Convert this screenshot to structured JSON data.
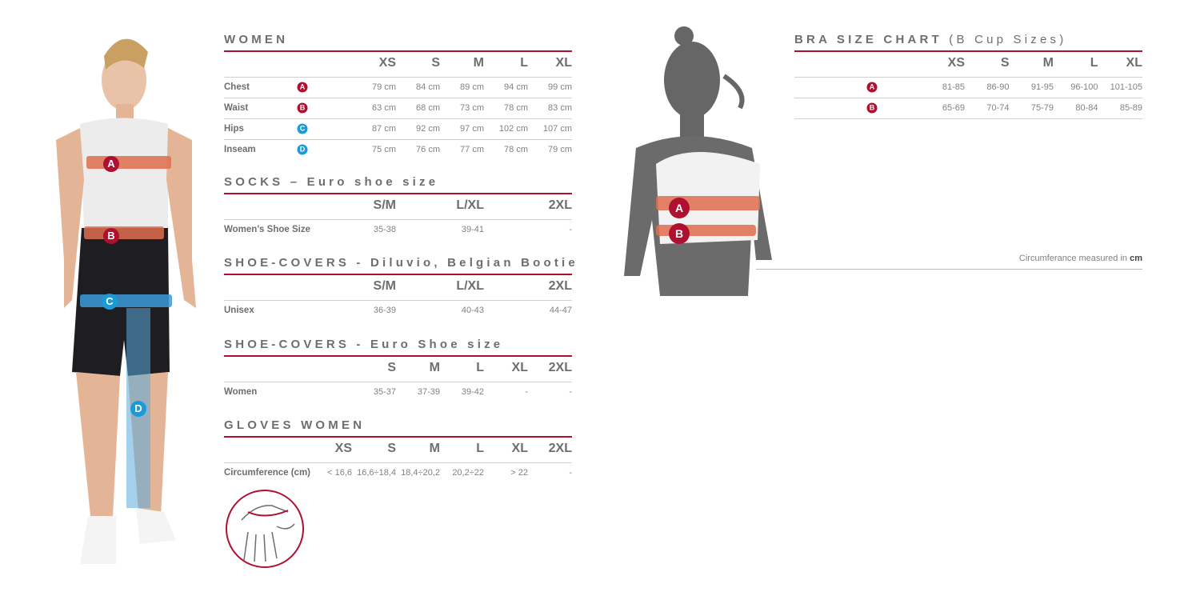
{
  "colors": {
    "accent": "#b0102f",
    "blue": "#1a9ad6",
    "text": "#6d6e71"
  },
  "tables": [
    {
      "title": "WOMEN",
      "subtitle": "",
      "sizes": [
        "XS",
        "S",
        "M",
        "L",
        "XL"
      ],
      "rows": [
        {
          "label": "Chest",
          "badge": "A",
          "badge_color": "#b0102f",
          "values": [
            "79 cm",
            "84 cm",
            "89 cm",
            "94 cm",
            "99 cm"
          ]
        },
        {
          "label": "Waist",
          "badge": "B",
          "badge_color": "#b0102f",
          "values": [
            "63 cm",
            "68 cm",
            "73 cm",
            "78 cm",
            "83 cm"
          ]
        },
        {
          "label": "Hips",
          "badge": "C",
          "badge_color": "#1a9ad6",
          "values": [
            "87 cm",
            "92 cm",
            "97 cm",
            "102 cm",
            "107 cm"
          ]
        },
        {
          "label": "Inseam",
          "badge": "D",
          "badge_color": "#1a9ad6",
          "values": [
            "75 cm",
            "76 cm",
            "77 cm",
            "78 cm",
            "79 cm"
          ]
        }
      ]
    },
    {
      "title": "SOCKS – Euro shoe size",
      "subtitle": "",
      "sizes": [
        "S/M",
        "L/XL",
        "2XL"
      ],
      "rows": [
        {
          "label": "Women's Shoe Size",
          "values": [
            "35-38",
            "39-41",
            "-"
          ]
        }
      ]
    },
    {
      "title": "SHOE-COVERS - Diluvio, Belgian Bootie",
      "subtitle": "",
      "sizes": [
        "S/M",
        "L/XL",
        "2XL"
      ],
      "rows": [
        {
          "label": "Unisex",
          "values": [
            "36-39",
            "40-43",
            "44-47"
          ]
        }
      ]
    },
    {
      "title": "SHOE-COVERS - Euro Shoe size",
      "subtitle": "",
      "sizes": [
        "S",
        "M",
        "L",
        "XL",
        "2XL"
      ],
      "rows": [
        {
          "label": "Women",
          "values": [
            "35-37",
            "37-39",
            "39-42",
            "-",
            "-"
          ]
        }
      ]
    },
    {
      "title": "GLOVES WOMEN",
      "subtitle": "",
      "sizes": [
        "XS",
        "S",
        "M",
        "L",
        "XL",
        "2XL"
      ],
      "rows": [
        {
          "label": "Circumference (cm)",
          "values": [
            "< 16,6",
            "16,6÷18,4",
            "18,4÷20,2",
            "20,2÷22",
            "> 22",
            "-"
          ]
        }
      ]
    },
    {
      "title": "BRA SIZE CHART",
      "subtitle": "(B Cup Sizes)",
      "sizes": [
        "XS",
        "S",
        "M",
        "L",
        "XL"
      ],
      "rows": [
        {
          "label": "",
          "badge": "A",
          "badge_color": "#b0102f",
          "values": [
            "81-85",
            "86-90",
            "91-95",
            "96-100",
            "101-105"
          ]
        },
        {
          "label": "",
          "badge": "B",
          "badge_color": "#b0102f",
          "values": [
            "65-69",
            "70-74",
            "75-79",
            "80-84",
            "85-89"
          ]
        }
      ]
    }
  ],
  "bra_note": {
    "text": "Circumferance measured in ",
    "unit": "cm"
  },
  "figure_badges": {
    "a": "A",
    "b": "B",
    "c": "C",
    "d": "D"
  }
}
